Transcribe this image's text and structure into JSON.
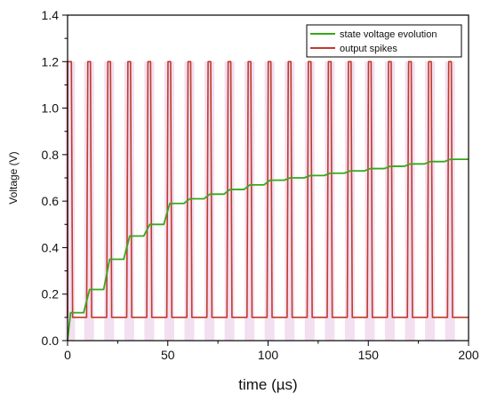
{
  "chart_data": {
    "type": "line",
    "xlabel": "time (µs)",
    "ylabel": "Voltage (V)",
    "xlim": [
      0,
      200
    ],
    "ylim": [
      0,
      1.4
    ],
    "x_ticks": [
      0,
      50,
      100,
      150,
      200
    ],
    "y_ticks": [
      0.0,
      0.2,
      0.4,
      0.6,
      0.8,
      1.0,
      1.2,
      1.4
    ],
    "x_tick_labels": [
      "0",
      "50",
      "100",
      "150",
      "200"
    ],
    "y_tick_labels": [
      "0.0",
      "0.2",
      "0.4",
      "0.6",
      "0.8",
      "1.0",
      "1.2",
      "1.4"
    ],
    "grid": false,
    "legend_position": "top-right",
    "series": [
      {
        "name": "state voltage evolution",
        "color": "#3aa61a",
        "x": [
          0,
          1.5,
          8,
          11,
          18,
          21,
          28,
          31,
          38,
          41,
          48,
          51,
          58,
          61,
          68,
          71,
          78,
          81,
          88,
          91,
          98,
          101,
          108,
          111,
          118,
          121,
          128,
          131,
          138,
          141,
          148,
          151,
          158,
          161,
          168,
          171,
          178,
          181,
          188,
          191,
          200
        ],
        "values": [
          0,
          0.12,
          0.12,
          0.22,
          0.22,
          0.35,
          0.35,
          0.45,
          0.45,
          0.5,
          0.5,
          0.59,
          0.59,
          0.61,
          0.61,
          0.63,
          0.63,
          0.65,
          0.65,
          0.67,
          0.67,
          0.69,
          0.69,
          0.7,
          0.7,
          0.71,
          0.71,
          0.72,
          0.72,
          0.73,
          0.73,
          0.74,
          0.74,
          0.75,
          0.75,
          0.76,
          0.76,
          0.77,
          0.77,
          0.78,
          0.78
        ]
      },
      {
        "name": "output spikes",
        "color": "#c0392b",
        "baseline": 0.1,
        "peak": 1.2,
        "spike_start_times": [
          0,
          9.5,
          19.5,
          29.5,
          39.5,
          49.5,
          59.5,
          69.5,
          79.5,
          89.5,
          99.5,
          109.5,
          119.5,
          129.5,
          139.5,
          149.5,
          159.5,
          169.5,
          179.5,
          189.5
        ],
        "spike_width": 2.5
      }
    ]
  }
}
